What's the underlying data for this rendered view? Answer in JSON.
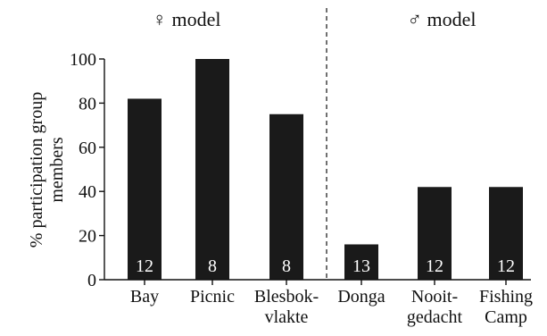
{
  "chart_data": {
    "type": "bar",
    "categories": [
      [
        "Bay"
      ],
      [
        "Picnic"
      ],
      [
        "Blesbok-",
        "vlakte"
      ],
      [
        "Donga"
      ],
      [
        "Nooit-",
        "gedacht"
      ],
      [
        "Fishing",
        "Camp"
      ]
    ],
    "values": [
      82,
      100,
      75,
      16,
      42,
      42
    ],
    "bar_labels": [
      "12",
      "8",
      "8",
      "13",
      "12",
      "12"
    ],
    "groups": [
      {
        "label": "♀ model",
        "categories": [
          0,
          1,
          2
        ]
      },
      {
        "label": "♂ model",
        "categories": [
          3,
          4,
          5
        ]
      }
    ],
    "ylabel": "% participation group members",
    "ylabel_lines": [
      "% participation group",
      "members"
    ],
    "ylim": [
      0,
      100
    ],
    "yticks": [
      0,
      20,
      40,
      60,
      80,
      100
    ],
    "grid": false,
    "divider": "dashed",
    "colors": {
      "bar": "#1a1a1a",
      "bar_label": "#ffffff",
      "axis": "#111111"
    }
  }
}
